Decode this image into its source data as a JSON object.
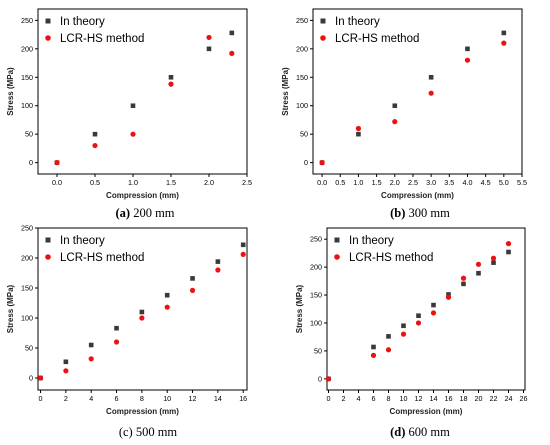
{
  "chart_data": [
    {
      "type": "scatter",
      "panel_label": "(a)",
      "caption": "200 mm",
      "xlabel": "Compression (mm)",
      "ylabel": "Stress (MPa)",
      "xlim": [
        -0.25,
        2.5
      ],
      "ylim": [
        -20,
        270
      ],
      "xticks": [
        0.0,
        0.5,
        1.0,
        1.5,
        2.0,
        2.5
      ],
      "xtick_labels": [
        "0.0",
        "0.5",
        "1.0",
        "1.5",
        "2.0",
        "2.5"
      ],
      "yticks": [
        0,
        50,
        100,
        150,
        200,
        250
      ],
      "ytick_labels": [
        "0",
        "50",
        "100",
        "150",
        "200",
        "250"
      ],
      "legend_position": "top-left",
      "series": [
        {
          "name": "In theory",
          "marker": "square",
          "color": "#3a3a3a",
          "x": [
            0.0,
            0.5,
            1.0,
            1.5,
            2.0,
            2.3
          ],
          "y": [
            0,
            50,
            100,
            150,
            200,
            228
          ]
        },
        {
          "name": "LCR-HS method",
          "marker": "circle",
          "color": "#ee1111",
          "x": [
            0.0,
            0.5,
            1.0,
            1.5,
            2.0,
            2.3
          ],
          "y": [
            0,
            30,
            50,
            138,
            220,
            192
          ]
        }
      ]
    },
    {
      "type": "scatter",
      "panel_label": "(b)",
      "caption": "300 mm",
      "xlabel": "Compression (mm)",
      "ylabel": "Stress (MPa)",
      "xlim": [
        -0.25,
        5.5
      ],
      "ylim": [
        -20,
        270
      ],
      "xticks": [
        0.0,
        0.5,
        1.0,
        1.5,
        2.0,
        2.5,
        3.0,
        3.5,
        4.0,
        4.5,
        5.0,
        5.5
      ],
      "xtick_labels": [
        "0.0",
        "0.5",
        "1.0",
        "1.5",
        "2.0",
        "2.5",
        "3.0",
        "3.5",
        "4.0",
        "4.5",
        "5.0",
        "5.5"
      ],
      "yticks": [
        0,
        50,
        100,
        150,
        200,
        250
      ],
      "ytick_labels": [
        "0",
        "50",
        "100",
        "150",
        "200",
        "250"
      ],
      "legend_position": "top-left",
      "series": [
        {
          "name": "In theory",
          "marker": "square",
          "color": "#3a3a3a",
          "x": [
            0.0,
            1.0,
            2.0,
            3.0,
            4.0,
            5.0
          ],
          "y": [
            0,
            50,
            100,
            150,
            200,
            228
          ]
        },
        {
          "name": "LCR-HS method",
          "marker": "circle",
          "color": "#ee1111",
          "x": [
            0.0,
            1.0,
            2.0,
            3.0,
            4.0,
            5.0
          ],
          "y": [
            0,
            60,
            72,
            122,
            180,
            210
          ]
        }
      ]
    },
    {
      "type": "scatter",
      "panel_label": "(c)",
      "caption": "500 mm",
      "xlabel": "Compression (mm)",
      "ylabel": "Stress (MPa)",
      "xlim": [
        -0.2,
        16.3
      ],
      "ylim": [
        -20,
        250
      ],
      "xticks": [
        0,
        2,
        4,
        6,
        8,
        10,
        12,
        14,
        16
      ],
      "xtick_labels": [
        "0",
        "2",
        "4",
        "6",
        "8",
        "10",
        "12",
        "14",
        "16"
      ],
      "yticks": [
        0,
        50,
        100,
        150,
        200,
        250
      ],
      "ytick_labels": [
        "0",
        "50",
        "100",
        "150",
        "200",
        "250"
      ],
      "legend_position": "top-left",
      "series": [
        {
          "name": "In theory",
          "marker": "square",
          "color": "#3a3a3a",
          "x": [
            0,
            2,
            4,
            6,
            8,
            10,
            12,
            14,
            16
          ],
          "y": [
            0,
            27,
            55,
            83,
            110,
            138,
            166,
            194,
            222
          ]
        },
        {
          "name": "LCR-HS method",
          "marker": "circle",
          "color": "#ee1111",
          "x": [
            0,
            2,
            4,
            6,
            8,
            10,
            12,
            14,
            16
          ],
          "y": [
            0,
            12,
            32,
            60,
            100,
            118,
            146,
            180,
            206
          ]
        }
      ]
    },
    {
      "type": "scatter",
      "panel_label": "(d)",
      "caption": "600 mm",
      "xlabel": "Compression (mm)",
      "ylabel": "Stress (MPa)",
      "xlim": [
        -0.2,
        26.2
      ],
      "ylim": [
        -20,
        270
      ],
      "xticks": [
        0,
        2,
        4,
        6,
        8,
        10,
        12,
        14,
        16,
        18,
        20,
        22,
        24,
        26
      ],
      "xtick_labels": [
        "0",
        "2",
        "4",
        "6",
        "8",
        "10",
        "12",
        "14",
        "16",
        "18",
        "20",
        "22",
        "24",
        "26"
      ],
      "yticks": [
        0,
        50,
        100,
        150,
        200,
        250
      ],
      "ytick_labels": [
        "0",
        "50",
        "100",
        "150",
        "200",
        "250"
      ],
      "legend_position": "top-left",
      "series": [
        {
          "name": "In theory",
          "marker": "square",
          "color": "#3a3a3a",
          "x": [
            0,
            6,
            8,
            10,
            12,
            14,
            16,
            18,
            20,
            22,
            24
          ],
          "y": [
            0,
            57,
            76,
            95,
            113,
            132,
            151,
            170,
            189,
            208,
            227
          ]
        },
        {
          "name": "LCR-HS method",
          "marker": "circle",
          "color": "#ee1111",
          "x": [
            0,
            6,
            8,
            10,
            12,
            14,
            16,
            18,
            20,
            22,
            24
          ],
          "y": [
            0,
            42,
            52,
            80,
            100,
            118,
            146,
            180,
            205,
            216,
            242
          ]
        }
      ]
    }
  ]
}
